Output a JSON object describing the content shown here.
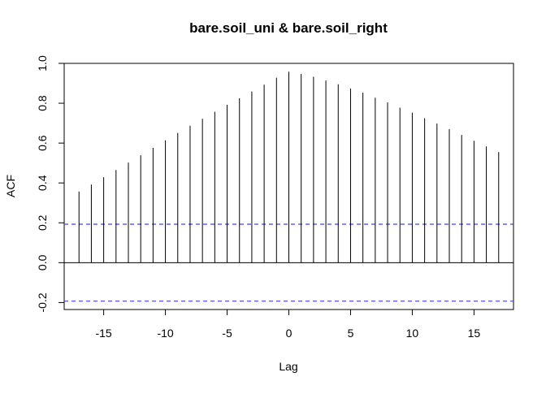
{
  "chart_data": {
    "type": "acf",
    "title": "bare.soil_uni & bare.soil_right",
    "xlabel": "Lag",
    "ylabel": "ACF",
    "xlim": [
      -18.2,
      18.2
    ],
    "ylim": [
      -0.235,
      1.0
    ],
    "x_ticks": [
      -15,
      -10,
      -5,
      0,
      5,
      10,
      15
    ],
    "x_tick_labels": [
      "-15",
      "-10",
      "-5",
      "0",
      "5",
      "10",
      "15"
    ],
    "y_ticks": [
      -0.2,
      0.0,
      0.2,
      0.4,
      0.6,
      0.8,
      1.0
    ],
    "y_tick_labels": [
      "-0.2",
      "0.0",
      "0.2",
      "0.4",
      "0.6",
      "0.8",
      "1.0"
    ],
    "zero_line": 0,
    "confidence_bounds": [
      0.193,
      -0.193
    ],
    "confidence_color": "#4040f0",
    "series_color": "#000000",
    "lags": [
      -17,
      -16,
      -15,
      -14,
      -13,
      -12,
      -11,
      -10,
      -9,
      -8,
      -7,
      -6,
      -5,
      -4,
      -3,
      -2,
      -1,
      0,
      1,
      2,
      3,
      4,
      5,
      6,
      7,
      8,
      9,
      10,
      11,
      12,
      13,
      14,
      15,
      16,
      17
    ],
    "values": [
      0.357,
      0.392,
      0.429,
      0.465,
      0.502,
      0.539,
      0.576,
      0.614,
      0.651,
      0.687,
      0.722,
      0.757,
      0.792,
      0.825,
      0.859,
      0.893,
      0.928,
      0.958,
      0.947,
      0.933,
      0.914,
      0.895,
      0.873,
      0.853,
      0.828,
      0.804,
      0.778,
      0.753,
      0.725,
      0.698,
      0.67,
      0.641,
      0.612,
      0.583,
      0.555
    ]
  }
}
